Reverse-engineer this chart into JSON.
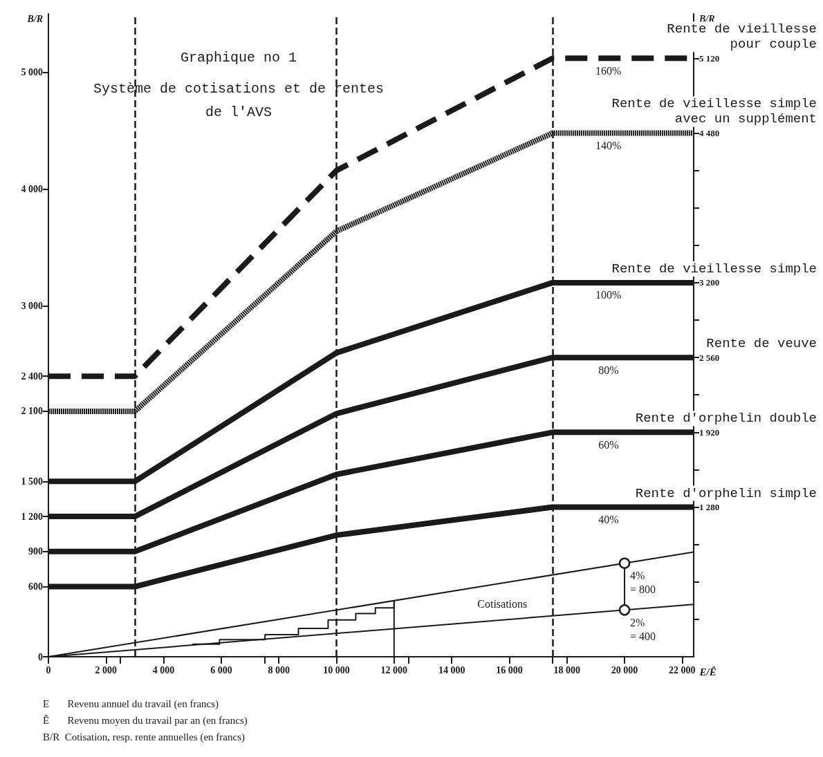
{
  "chart_data": {
    "type": "line",
    "title": "Graphique no 1",
    "subtitle": "Système de cotisations et de rentes\nde l'AVS",
    "xlabel": "E/Ê",
    "ylabel": "B/R",
    "y2label": "B/R",
    "xlim": [
      0,
      22400
    ],
    "xticks": [
      0,
      {
        "value": 2000,
        "label": "2 000"
      },
      {
        "value": 4000,
        "label": "4 000"
      },
      {
        "value": 6000,
        "label": "6 000"
      },
      {
        "value": 8000,
        "label": "8 000"
      },
      {
        "value": 10000,
        "label": "10 000"
      },
      {
        "value": 12000,
        "label": "12 000"
      },
      {
        "value": 14000,
        "label": "14 000"
      },
      {
        "value": 16000,
        "label": "16 000"
      },
      {
        "value": 18000,
        "label": "18 000"
      },
      {
        "value": 20000,
        "label": "20 000"
      },
      {
        "value": 22000,
        "label": "22 000"
      }
    ],
    "ylim": [
      0,
      5500
    ],
    "yticks": [
      0,
      600,
      900,
      {
        "value": 1200,
        "label": "1 200"
      },
      {
        "value": 1500,
        "label": "1 500"
      },
      {
        "value": 2100,
        "label": "2 100"
      },
      {
        "value": 2400,
        "label": "2 400"
      },
      {
        "value": 3000,
        "label": "3 000"
      },
      {
        "value": 4000,
        "label": "4 000"
      },
      {
        "value": 5000,
        "label": "5 000"
      }
    ],
    "y2lim": [
      0,
      5500
    ],
    "y2ticks": [
      {
        "value": 320,
        "label": null
      },
      {
        "value": 640,
        "label": null
      },
      {
        "value": 960,
        "label": null
      },
      {
        "value": 1280,
        "label": "1 280"
      },
      {
        "value": 1600,
        "label": null
      },
      {
        "value": 1920,
        "label": "1 920"
      },
      {
        "value": 2240,
        "label": null
      },
      {
        "value": 2560,
        "label": "2 560"
      },
      {
        "value": 2880,
        "label": null
      },
      {
        "value": 3200,
        "label": "3 200"
      },
      {
        "value": 3520,
        "label": null
      },
      {
        "value": 3840,
        "label": null
      },
      {
        "value": 4160,
        "label": null
      },
      {
        "value": 4480,
        "label": "4 480"
      },
      {
        "value": 5120,
        "label": "5 120"
      }
    ],
    "grid": false,
    "marker": "none",
    "series": [
      {
        "name": "Rente de vieillesse\npour couple",
        "color": "#1a1a1a",
        "line_style": "dashed",
        "x": [
          0,
          3000,
          10000,
          17500,
          22400
        ],
        "values": [
          2400,
          2400,
          4160,
          5120,
          5120
        ]
      },
      {
        "name": "Rente de vieillesse simple\navec un supplément",
        "color": "#1a1a1a",
        "line_style": "dotted",
        "x": [
          0,
          3000,
          10000,
          17500,
          22400
        ],
        "values": [
          2100,
          2100,
          3640,
          4480,
          4480
        ]
      },
      {
        "name": "Rente de vieillesse simple",
        "color": "#1a1a1a",
        "line_style": "solid",
        "x": [
          0,
          3000,
          10000,
          17500,
          22400
        ],
        "values": [
          1500,
          1500,
          2600,
          3200,
          3200
        ]
      },
      {
        "name": "Rente de veuve",
        "color": "#1a1a1a",
        "line_style": "solid",
        "x": [
          0,
          3000,
          10000,
          17500,
          22400
        ],
        "values": [
          1200,
          1200,
          2080,
          2560,
          2560
        ]
      },
      {
        "name": "Rente d'orphelin double",
        "color": "#1a1a1a",
        "line_style": "solid",
        "x": [
          0,
          3000,
          10000,
          17500,
          22400
        ],
        "values": [
          900,
          900,
          1560,
          1920,
          1920
        ]
      },
      {
        "name": "Rente d'orphelin simple",
        "color": "#1a1a1a",
        "line_style": "solid",
        "x": [
          0,
          3000,
          10000,
          17500,
          22400
        ],
        "values": [
          600,
          600,
          1040,
          1280,
          1280
        ]
      },
      {
        "color": "#1a1a1a",
        "line_style": "solid",
        "x": [
          0,
          22400
        ],
        "values": [
          0,
          896
        ]
      },
      {
        "color": "#1a1a1a",
        "line_style": "solid",
        "x": [
          0,
          22400
        ],
        "values": [
          0,
          448
        ]
      },
      {
        "type": "step",
        "color": "#1a1a1a",
        "line_style": "solid",
        "x": [
          5000,
          5940,
          7520,
          8680,
          9710,
          10670,
          11350,
          12000
        ],
        "values": [
          108,
          146,
          189,
          242,
          315,
          369,
          418,
          480
        ]
      },
      {
        "color": "#1a1a1a",
        "line_style": "solid",
        "x": [
          12000,
          12000
        ],
        "values": [
          0,
          480
        ]
      },
      {
        "color": "#1a1a1a",
        "line_style": "solid",
        "marker": "circle",
        "x": [
          20000,
          20000
        ],
        "values": [
          400,
          800
        ]
      }
    ],
    "ref_lines": [
      {
        "axis": "x",
        "value": 3000,
        "line_style": "dashed",
        "color": "#1a1a1a"
      },
      {
        "axis": "x",
        "value": 10000,
        "line_style": "dashed",
        "color": "#1a1a1a"
      },
      {
        "axis": "x",
        "value": 17500,
        "line_style": "dashed",
        "color": "#1a1a1a"
      }
    ],
    "annotations": [
      {
        "text": "160%",
        "x": 18800,
        "y": 5120
      },
      {
        "text": "140%",
        "x": 18800,
        "y": 4480
      },
      {
        "text": "100%",
        "x": 18800,
        "y": 3200
      },
      {
        "text": "80%",
        "x": 18900,
        "y": 2560
      },
      {
        "text": "60%",
        "x": 18900,
        "y": 1920
      },
      {
        "text": "40%",
        "x": 18900,
        "y": 1280
      },
      {
        "text": "4%\n= 800",
        "x": 20000,
        "y": 800
      },
      {
        "text": "2%\n= 400",
        "x": 20000,
        "y": 400
      },
      {
        "text": "Cotisations",
        "x": 14700,
        "y": 560
      },
      "E       Revenu annuel du travail (en francs)",
      "Ê       Revenu moyen du travail par an (en francs)",
      "B/R  Cotisation, resp. rente annuelles (en francs)"
    ]
  }
}
